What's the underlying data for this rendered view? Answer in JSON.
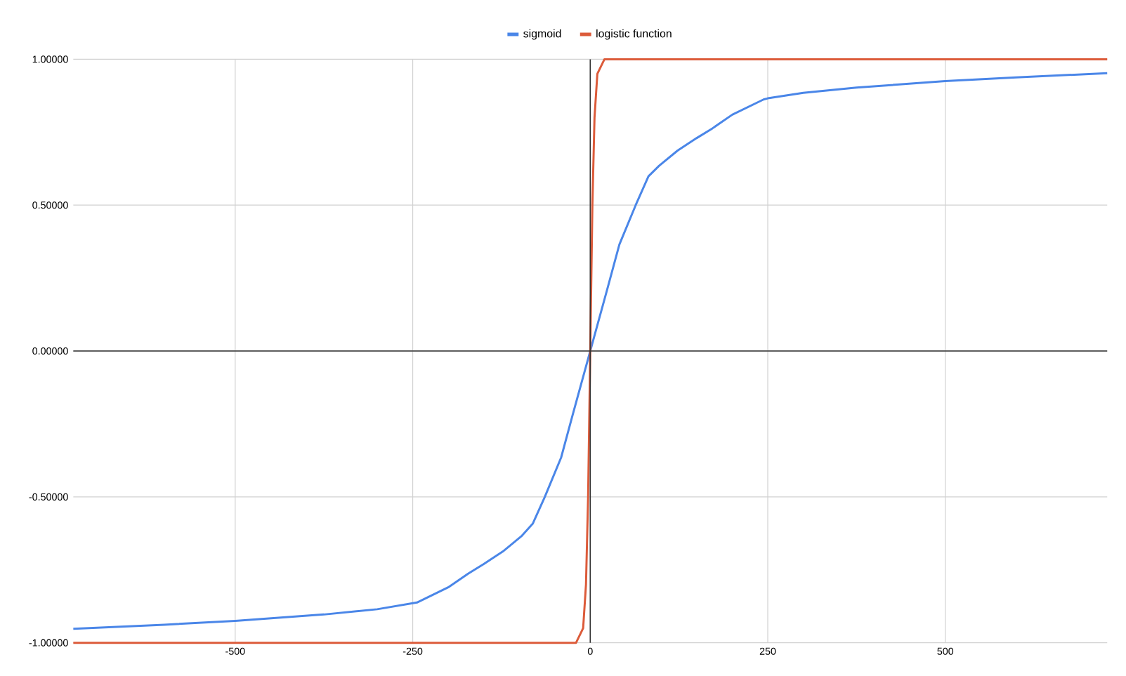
{
  "chart_data": {
    "type": "line",
    "series": [
      {
        "name": "sigmoid",
        "color": "#4a86e8",
        "x": [
          -728,
          -600,
          -500,
          -375,
          -300,
          -244,
          -200,
          -172,
          -150,
          -123,
          -97,
          -81,
          -64,
          -41,
          -25,
          0,
          25,
          41,
          64,
          82,
          97,
          123,
          150,
          172,
          200,
          244,
          250,
          300,
          375,
          500,
          600,
          728
        ],
        "values": [
          -0.952,
          -0.938,
          -0.925,
          -0.903,
          -0.885,
          -0.862,
          -0.81,
          -0.763,
          -0.73,
          -0.687,
          -0.635,
          -0.592,
          -0.5,
          -0.365,
          -0.221,
          0,
          0.221,
          0.365,
          0.5,
          0.599,
          0.635,
          0.687,
          0.73,
          0.763,
          0.81,
          0.862,
          0.866,
          0.885,
          0.903,
          0.925,
          0.938,
          0.952
        ]
      },
      {
        "name": "logistic function",
        "color": "#dc5b3a",
        "x": [
          -728,
          -20,
          -10,
          -6,
          -3,
          0,
          3,
          6,
          10,
          20,
          728
        ],
        "values": [
          -1,
          -1,
          -0.95,
          -0.8,
          -0.5,
          0,
          0.5,
          0.8,
          0.95,
          1,
          1
        ]
      }
    ],
    "xlim": [
      -728,
      728
    ],
    "ylim": [
      -1,
      1
    ],
    "xticks": [
      -500,
      -250,
      0,
      250,
      500
    ],
    "yticks": [
      {
        "value": -1,
        "label": "-1.00000"
      },
      {
        "value": -0.5,
        "label": "-0.50000"
      },
      {
        "value": 0,
        "label": "0.00000"
      },
      {
        "value": 0.5,
        "label": "0.50000"
      },
      {
        "value": 1,
        "label": "1.00000"
      }
    ],
    "grid": true,
    "legend": "top",
    "marker": "none",
    "line_style": "solid"
  }
}
